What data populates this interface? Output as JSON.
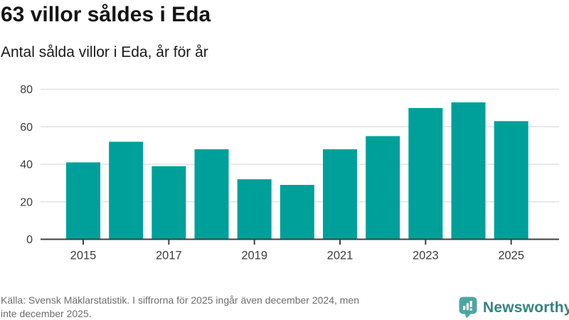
{
  "header": {
    "title": "63 villor såldes i Eda",
    "subtitle": "Antal sålda villor i Eda, år för år"
  },
  "chart_data": {
    "type": "bar",
    "title": "63 villor såldes i Eda",
    "subtitle": "Antal sålda villor i Eda, år för år",
    "categories": [
      "2015",
      "2016",
      "2017",
      "2018",
      "2019",
      "2020",
      "2021",
      "2022",
      "2023",
      "2024",
      "2025"
    ],
    "values": [
      41,
      52,
      39,
      48,
      32,
      29,
      48,
      55,
      70,
      73,
      63
    ],
    "xlabel": "",
    "ylabel": "",
    "ylim": [
      0,
      80
    ],
    "yticks": [
      0,
      20,
      40,
      60,
      80
    ],
    "xtick_labels": [
      "2015",
      "2017",
      "2019",
      "2021",
      "2023",
      "2025"
    ],
    "grid": true,
    "legend": "none",
    "bar_color": "#00A09A",
    "gridline_color": "#e2e2e2",
    "axis_line_color": "#3f3f3f",
    "axis_label_color": "#3d3d3d"
  },
  "footer": {
    "source_line1": "Källa: Svensk Mäklarstatistik. I siffrorna för 2025 ingår även december 2024, men",
    "source_line2": "inte december 2025.",
    "brand_name": "Newsworthy",
    "brand_color": "#35827e",
    "brand_icon_color": "#4ba6a1"
  }
}
